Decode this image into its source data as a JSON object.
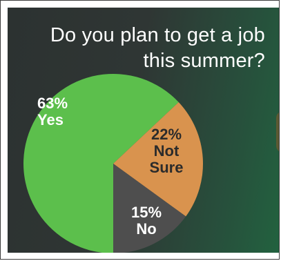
{
  "chart_data": {
    "type": "pie",
    "title": "Do you plan to get a job this summer?",
    "title_lines": [
      "Do you plan to get a job",
      "this summer?"
    ],
    "slices": [
      {
        "label": "Yes",
        "value": 63,
        "value_label": "63%",
        "label_lines": [
          "Yes"
        ],
        "color": "#5cbf4c",
        "text_color": "#ffffff"
      },
      {
        "label": "Not Sure",
        "value": 22,
        "value_label": "22%",
        "label_lines": [
          "Not",
          "Sure"
        ],
        "color": "#d9934e",
        "text_color": "#2b2b2b"
      },
      {
        "label": "No",
        "value": 15,
        "value_label": "15%",
        "label_lines": [
          "No"
        ],
        "color": "#4e4e4e",
        "text_color": "#ffffff"
      }
    ]
  },
  "colors": {
    "background_dark": "#2f3634",
    "background_green": "#22623f",
    "title_text": "#ffffff"
  }
}
